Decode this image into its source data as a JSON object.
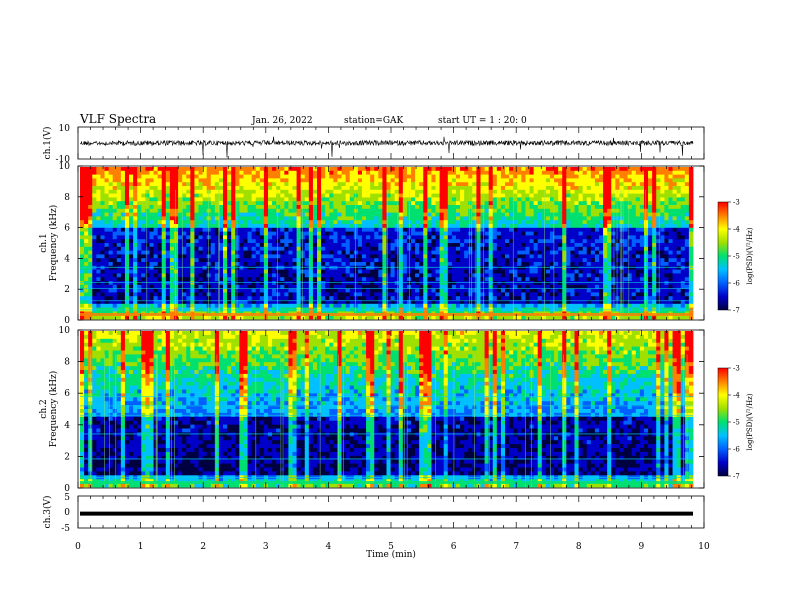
{
  "header": {
    "title": "VLF Spectra",
    "date": "Jan. 26, 2022",
    "station": "station=GAK",
    "start": "start UT =  1 : 20: 0"
  },
  "colors": {
    "colormap": [
      "#000040",
      "#0000c8",
      "#0060ff",
      "#00c0ff",
      "#00e070",
      "#a0e000",
      "#ffff00",
      "#ff8000",
      "#ff0000"
    ],
    "trace": "#000000",
    "axis": "#000000"
  },
  "chart_data": [
    {
      "type": "line",
      "name": "ch1-waveform",
      "ylabel": "ch.1(V)",
      "ylim": [
        -10,
        10
      ],
      "yticks": [
        "10",
        "-10"
      ],
      "xlim": [
        0,
        10
      ],
      "description_level": 0,
      "grid": false
    },
    {
      "type": "heatmap",
      "name": "ch1-spectrogram",
      "ylabel_line1": "ch.1",
      "ylabel_line2": "Frequency (kHz)",
      "ylim": [
        0,
        10
      ],
      "yticks": [
        "0",
        "2",
        "4",
        "6",
        "8",
        "10"
      ],
      "xlim": [
        0,
        10
      ],
      "colorbar": {
        "label": "log(PSD)(V²/Hz)",
        "range": [
          -7,
          -3
        ],
        "ticks": [
          "-3",
          "-4",
          "-5",
          "-6",
          "-7"
        ]
      }
    },
    {
      "type": "heatmap",
      "name": "ch2-spectrogram",
      "ylabel_line1": "ch.2",
      "ylabel_line2": "Frequency (kHz)",
      "ylim": [
        0,
        10
      ],
      "yticks": [
        "0",
        "2",
        "4",
        "6",
        "8",
        "10"
      ],
      "xlim": [
        0,
        10
      ],
      "colorbar": {
        "label": "log(PSD)(V²/Hz)",
        "range": [
          -7,
          -3
        ],
        "ticks": [
          "-3",
          "-4",
          "-5",
          "-6",
          "-7"
        ]
      }
    },
    {
      "type": "line",
      "name": "ch3-waveform",
      "ylabel": "ch.3(V)",
      "ylim": [
        -5,
        5
      ],
      "yticks": [
        "5",
        "0",
        "-5"
      ],
      "xlim": [
        0,
        10
      ],
      "level": -0.5,
      "grid": false
    }
  ],
  "xaxis": {
    "label": "Time (min)",
    "ticks": [
      "0",
      "1",
      "2",
      "3",
      "4",
      "5",
      "6",
      "7",
      "8",
      "9",
      "10"
    ]
  }
}
